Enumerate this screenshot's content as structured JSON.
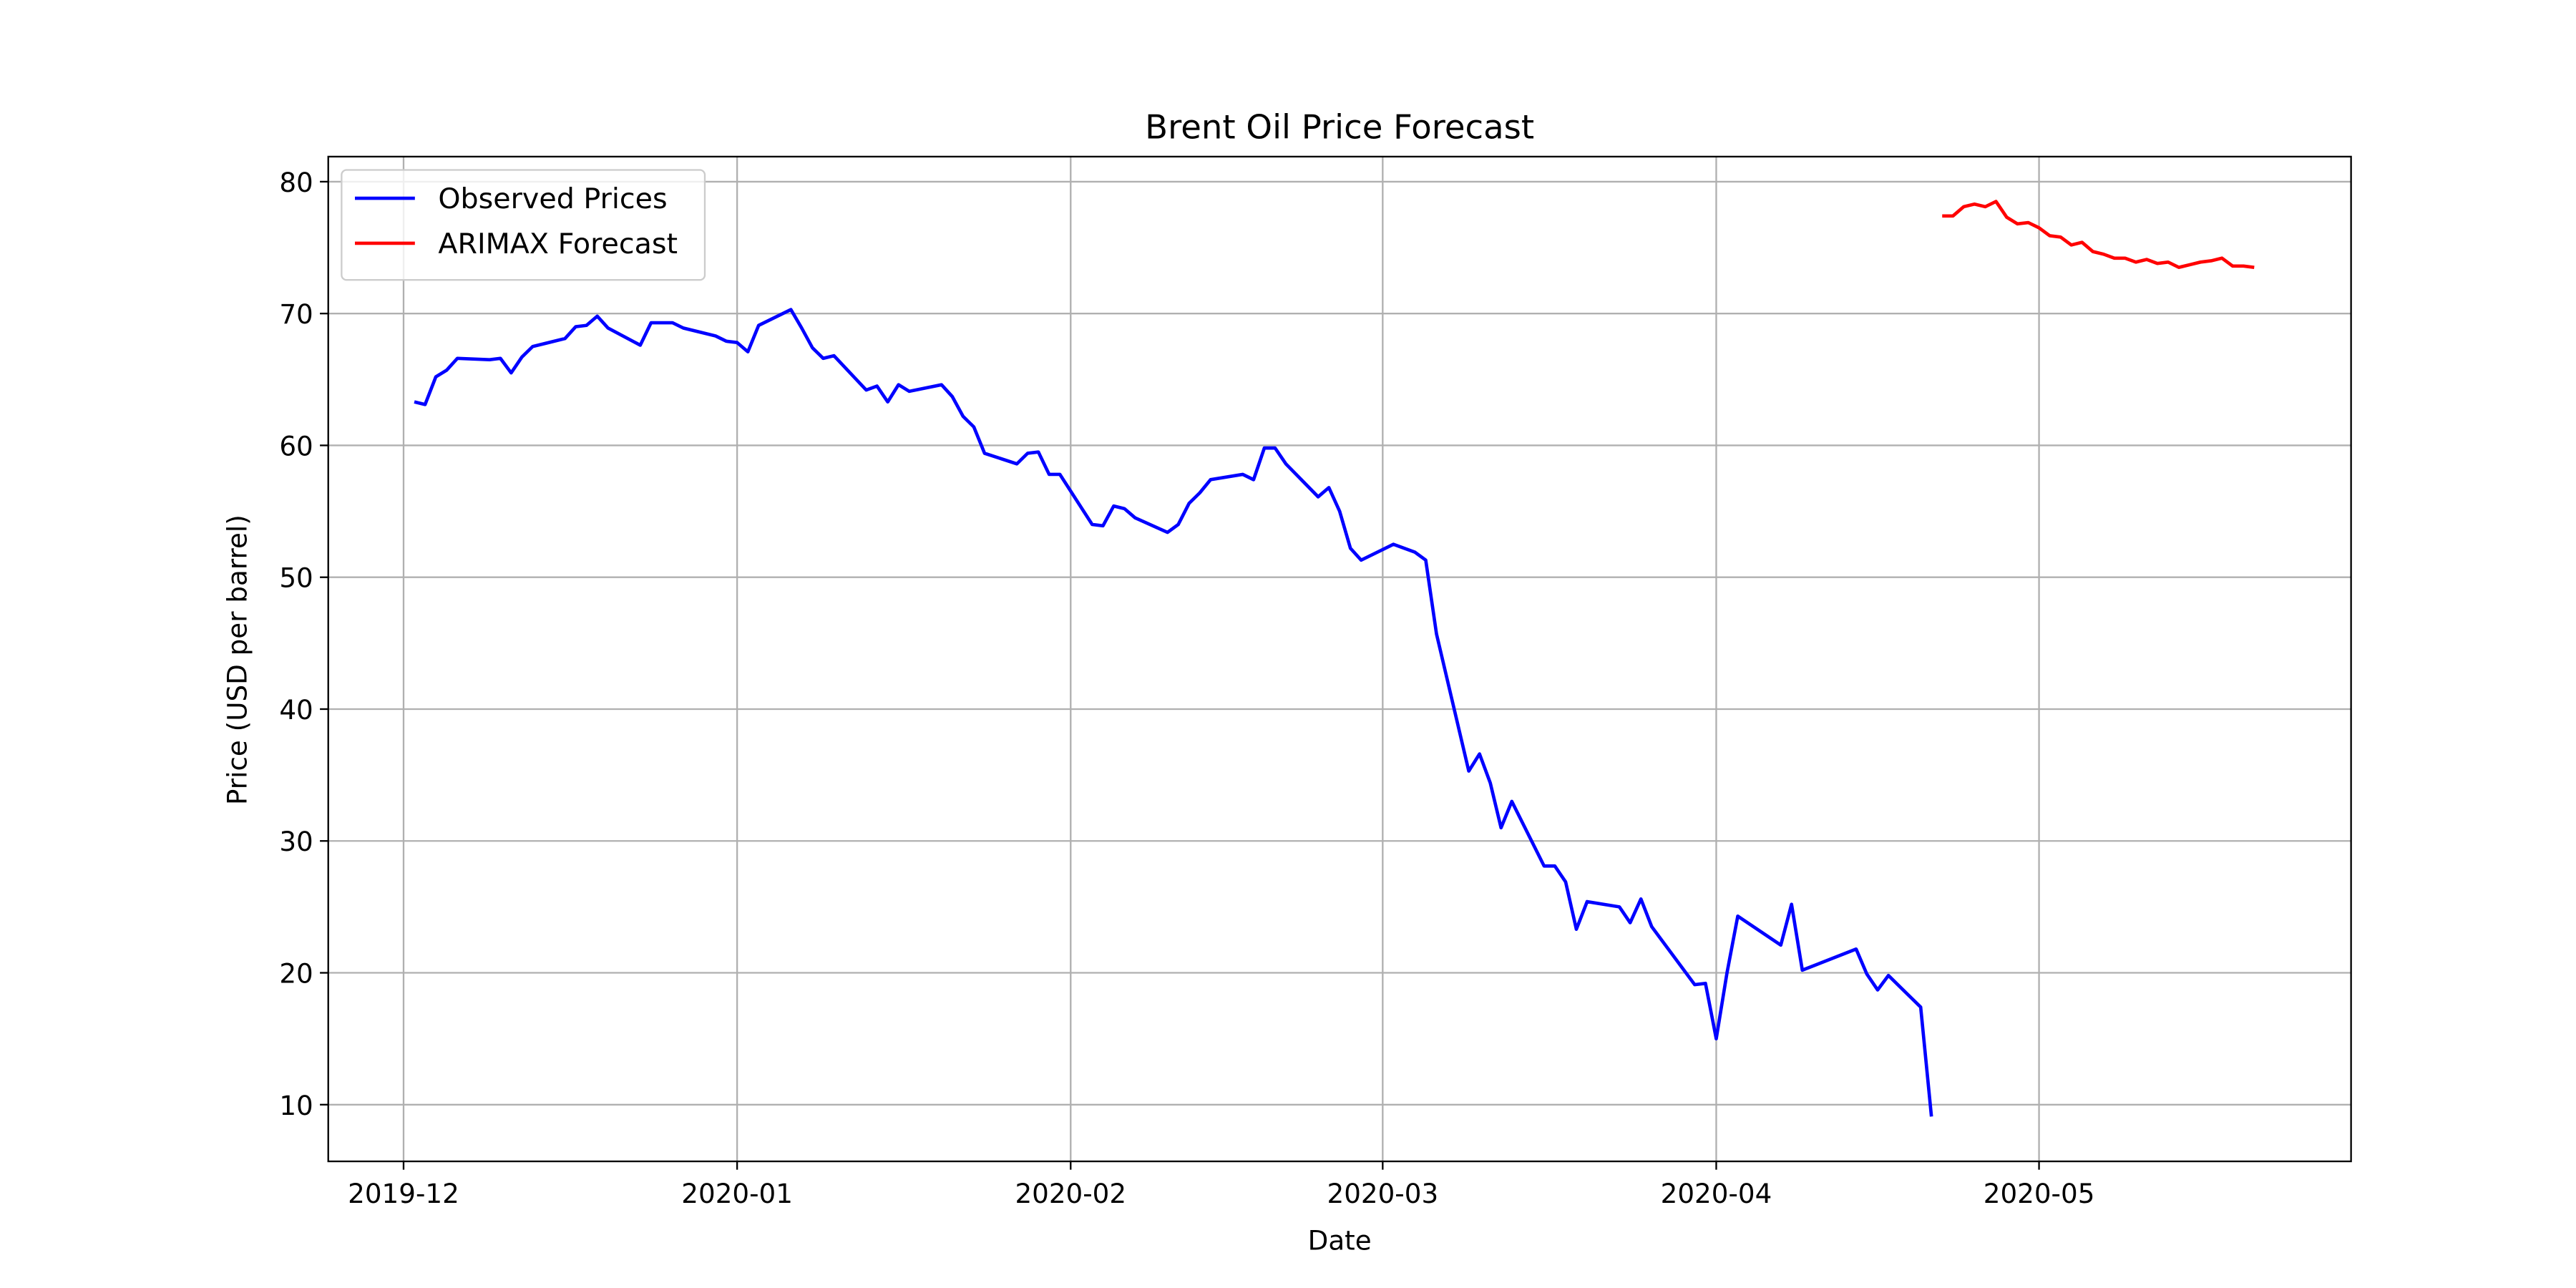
{
  "chart_data": {
    "type": "line",
    "title": "Brent Oil Price Forecast",
    "x_label": "Date",
    "y_label": "Price (USD per barrel)",
    "xlim": [
      "2019-11-24",
      "2020-05-30"
    ],
    "xticks": [
      {
        "value": "2019-12-01",
        "label": "2019-12"
      },
      {
        "value": "2020-01-01",
        "label": "2020-01"
      },
      {
        "value": "2020-02-01",
        "label": "2020-02"
      },
      {
        "value": "2020-03-01",
        "label": "2020-03"
      },
      {
        "value": "2020-04-01",
        "label": "2020-04"
      },
      {
        "value": "2020-05-01",
        "label": "2020-05"
      }
    ],
    "ylim": [
      5.7,
      81.9
    ],
    "yticks": [
      10,
      20,
      30,
      40,
      50,
      60,
      70,
      80
    ],
    "grid": true,
    "legend": "upper left",
    "series": [
      {
        "name": "Observed Prices",
        "color": "#0000ff",
        "x": [
          "2019-12-02",
          "2019-12-03",
          "2019-12-04",
          "2019-12-05",
          "2019-12-06",
          "2019-12-09",
          "2019-12-10",
          "2019-12-11",
          "2019-12-12",
          "2019-12-13",
          "2019-12-16",
          "2019-12-17",
          "2019-12-18",
          "2019-12-19",
          "2019-12-20",
          "2019-12-23",
          "2019-12-24",
          "2019-12-26",
          "2019-12-27",
          "2019-12-30",
          "2019-12-31",
          "2020-01-01",
          "2020-01-02",
          "2020-01-03",
          "2020-01-06",
          "2020-01-07",
          "2020-01-08",
          "2020-01-09",
          "2020-01-10",
          "2020-01-13",
          "2020-01-14",
          "2020-01-15",
          "2020-01-16",
          "2020-01-17",
          "2020-01-20",
          "2020-01-21",
          "2020-01-22",
          "2020-01-23",
          "2020-01-24",
          "2020-01-27",
          "2020-01-28",
          "2020-01-29",
          "2020-01-30",
          "2020-01-31",
          "2020-02-03",
          "2020-02-04",
          "2020-02-05",
          "2020-02-06",
          "2020-02-07",
          "2020-02-10",
          "2020-02-11",
          "2020-02-12",
          "2020-02-13",
          "2020-02-14",
          "2020-02-17",
          "2020-02-18",
          "2020-02-19",
          "2020-02-20",
          "2020-02-21",
          "2020-02-24",
          "2020-02-25",
          "2020-02-26",
          "2020-02-27",
          "2020-02-28",
          "2020-03-02",
          "2020-03-03",
          "2020-03-04",
          "2020-03-05",
          "2020-03-06",
          "2020-03-09",
          "2020-03-10",
          "2020-03-11",
          "2020-03-12",
          "2020-03-13",
          "2020-03-16",
          "2020-03-17",
          "2020-03-18",
          "2020-03-19",
          "2020-03-20",
          "2020-03-23",
          "2020-03-24",
          "2020-03-25",
          "2020-03-26",
          "2020-03-30",
          "2020-03-31",
          "2020-04-01",
          "2020-04-02",
          "2020-04-03",
          "2020-04-07",
          "2020-04-08",
          "2020-04-09",
          "2020-04-14",
          "2020-04-15",
          "2020-04-16",
          "2020-04-17",
          "2020-04-20",
          "2020-04-21"
        ],
        "values": [
          63.3,
          63.1,
          65.2,
          65.7,
          66.6,
          66.5,
          66.6,
          65.5,
          66.7,
          67.5,
          68.1,
          69.0,
          69.1,
          69.8,
          68.9,
          67.6,
          69.3,
          69.3,
          68.9,
          68.3,
          67.9,
          67.8,
          67.1,
          69.1,
          70.3,
          68.9,
          67.4,
          66.6,
          66.8,
          64.2,
          64.5,
          63.3,
          64.6,
          64.1,
          64.6,
          63.7,
          62.2,
          61.4,
          59.4,
          58.6,
          59.4,
          59.5,
          57.8,
          57.8,
          54.0,
          53.9,
          55.4,
          55.2,
          54.5,
          53.4,
          54.0,
          55.6,
          56.4,
          57.4,
          57.8,
          57.4,
          59.8,
          59.8,
          58.6,
          56.1,
          56.8,
          55.0,
          52.2,
          51.3,
          52.5,
          52.2,
          51.9,
          51.3,
          45.7,
          35.3,
          36.6,
          34.4,
          31.0,
          33.0,
          28.1,
          28.1,
          26.9,
          23.3,
          25.4,
          25.0,
          23.8,
          25.6,
          23.5,
          19.1,
          19.2,
          15.0,
          20.0,
          24.3,
          22.1,
          25.2,
          20.2,
          21.8,
          19.9,
          18.7,
          19.8,
          17.4,
          9.1
        ]
      },
      {
        "name": "ARIMAX Forecast",
        "color": "#ff0000",
        "x": [
          "2020-04-22",
          "2020-04-23",
          "2020-04-24",
          "2020-04-25",
          "2020-04-26",
          "2020-04-27",
          "2020-04-28",
          "2020-04-29",
          "2020-04-30",
          "2020-05-01",
          "2020-05-02",
          "2020-05-03",
          "2020-05-04",
          "2020-05-05",
          "2020-05-06",
          "2020-05-07",
          "2020-05-08",
          "2020-05-09",
          "2020-05-10",
          "2020-05-11",
          "2020-05-12",
          "2020-05-13",
          "2020-05-14",
          "2020-05-15",
          "2020-05-16",
          "2020-05-17",
          "2020-05-18",
          "2020-05-19",
          "2020-05-20",
          "2020-05-21"
        ],
        "values": [
          77.4,
          77.4,
          78.1,
          78.3,
          78.1,
          78.5,
          77.3,
          76.8,
          76.9,
          76.5,
          75.9,
          75.8,
          75.2,
          75.4,
          74.7,
          74.5,
          74.2,
          74.2,
          73.9,
          74.1,
          73.8,
          73.9,
          73.5,
          73.7,
          73.9,
          74.0,
          74.2,
          73.6,
          73.6,
          73.5
        ]
      }
    ]
  }
}
